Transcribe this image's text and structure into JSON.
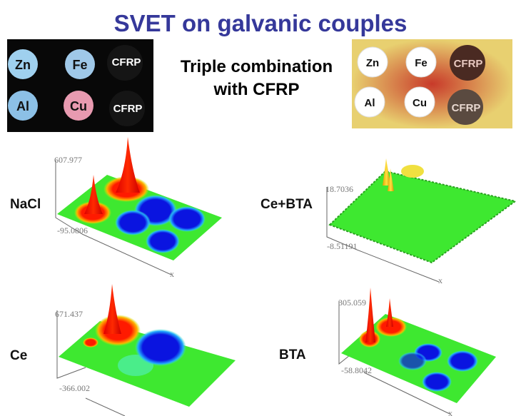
{
  "title": "SVET on galvanic couples",
  "subtitle": [
    "Triple combination",
    "with CFRP"
  ],
  "photo_left": {
    "labels": [
      "Zn",
      "Fe",
      "CFRP",
      "Al",
      "Cu",
      "CFRP"
    ]
  },
  "photo_right": {
    "labels": [
      "Zn",
      "Fe",
      "CFRP",
      "Al",
      "Cu",
      "CFRP"
    ]
  },
  "plots": [
    {
      "label": "NaCl",
      "zmax": "607.977",
      "zmin": "-95.0806",
      "axis": "x"
    },
    {
      "label": "Ce+BTA",
      "zmax": "18.7036",
      "zmin": "-8.51191",
      "axis": "x"
    },
    {
      "label": "Ce",
      "zmax": "671.437",
      "zmin": "-366.002"
    },
    {
      "label": "BTA",
      "zmax": "305.059",
      "zmin": "-58.8042",
      "axis": "x"
    }
  ],
  "colors": {
    "title": "#35389a",
    "anodic": "#ff1a00",
    "cathodic": "#0a14e0",
    "neutral": "#3ee830"
  }
}
